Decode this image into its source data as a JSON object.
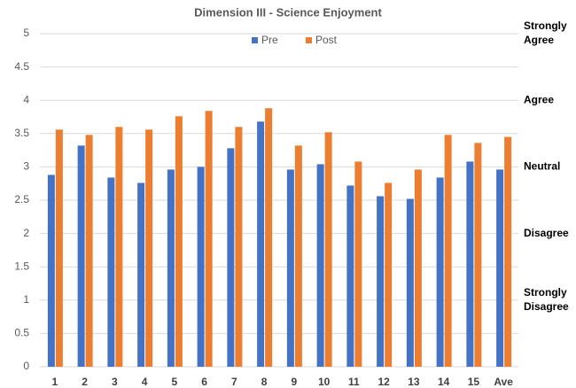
{
  "chart_data": {
    "type": "bar",
    "title": "Dimension III - Science Enjoyment",
    "categories": [
      "1",
      "2",
      "3",
      "4",
      "5",
      "6",
      "7",
      "8",
      "9",
      "10",
      "11",
      "12",
      "13",
      "14",
      "15",
      "Ave"
    ],
    "series": [
      {
        "name": "Pre",
        "color": "#4472c4",
        "values": [
          2.88,
          3.32,
          2.84,
          2.76,
          2.96,
          3.0,
          3.28,
          3.68,
          2.96,
          3.04,
          2.72,
          2.56,
          2.52,
          2.84,
          3.08,
          2.96
        ]
      },
      {
        "name": "Post",
        "color": "#ed7d31",
        "values": [
          3.56,
          3.48,
          3.6,
          3.56,
          3.76,
          3.84,
          3.6,
          3.88,
          3.32,
          3.52,
          3.08,
          2.76,
          2.96,
          3.48,
          3.36,
          3.45
        ]
      }
    ],
    "ylim": [
      0,
      5
    ],
    "yticks": [
      0,
      0.5,
      1,
      1.5,
      2,
      2.5,
      3,
      3.5,
      4,
      4.5,
      5
    ],
    "grid": true,
    "legend": "top",
    "annotations": [
      {
        "lines": [
          "Strongly",
          "Agree"
        ],
        "y": 5
      },
      {
        "lines": [
          "Agree"
        ],
        "y": 4
      },
      {
        "lines": [
          "Neutral"
        ],
        "y": 3
      },
      {
        "lines": [
          "Disagree"
        ],
        "y": 2
      },
      {
        "lines": [
          "Strongly",
          "Disagree"
        ],
        "y": 1
      }
    ]
  }
}
